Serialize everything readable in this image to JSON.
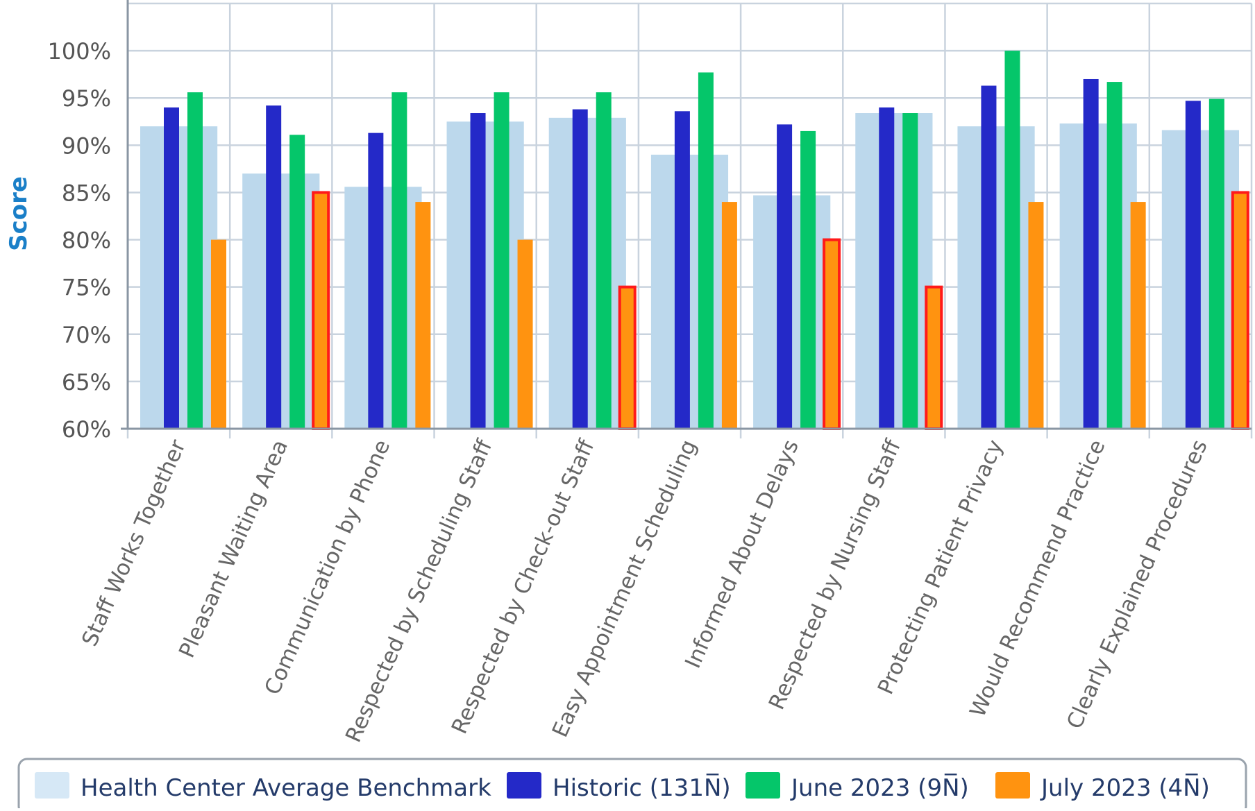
{
  "chart_data": {
    "type": "bar",
    "title": "",
    "xlabel": "",
    "ylabel": "Score",
    "ylim": [
      60,
      105
    ],
    "yticks": [
      60,
      65,
      70,
      75,
      80,
      85,
      90,
      95,
      100
    ],
    "ytick_labels": [
      "60%",
      "65%",
      "70%",
      "75%",
      "80%",
      "85%",
      "90%",
      "95%",
      "100%"
    ],
    "grid": true,
    "legend_position": "bottom",
    "categories": [
      "Staff Works Together",
      "Pleasant Waiting Area",
      "Communication by Phone",
      "Respected by Scheduling Staff",
      "Respected by Check-out Staff",
      "Easy Appointment Scheduling",
      "Informed About Delays",
      "Respected by Nursing Staff",
      "Protecting Patient Privacy",
      "Would Recommend Practice",
      "Clearly Explained Procedures"
    ],
    "series": [
      {
        "name": "Health Center Average Benchmark",
        "color": "#bcd8ec",
        "legend_color": "#d6e8f6",
        "values": [
          92,
          87,
          85.6,
          92.5,
          92.9,
          89,
          84.7,
          93.4,
          92,
          92.3,
          91.6
        ]
      },
      {
        "name": "Historic (131N̅)",
        "color": "#2429c8",
        "values": [
          94,
          94.2,
          91.3,
          93.4,
          93.8,
          93.6,
          92.2,
          94,
          96.3,
          97,
          94.7
        ]
      },
      {
        "name": "June 2023 (9N̅)",
        "color": "#05c66a",
        "values": [
          95.6,
          91.1,
          95.6,
          95.6,
          95.6,
          97.7,
          91.5,
          93.4,
          100,
          96.7,
          94.9
        ]
      },
      {
        "name": "July 2023 (4N̅)",
        "color": "#ff9310",
        "values": [
          80,
          85,
          84,
          80,
          75,
          84,
          80,
          75,
          84,
          84,
          85
        ]
      }
    ],
    "highlighted": [
      false,
      true,
      false,
      false,
      true,
      false,
      true,
      true,
      false,
      false,
      true
    ],
    "highlight_color": "#ff1a1a"
  }
}
